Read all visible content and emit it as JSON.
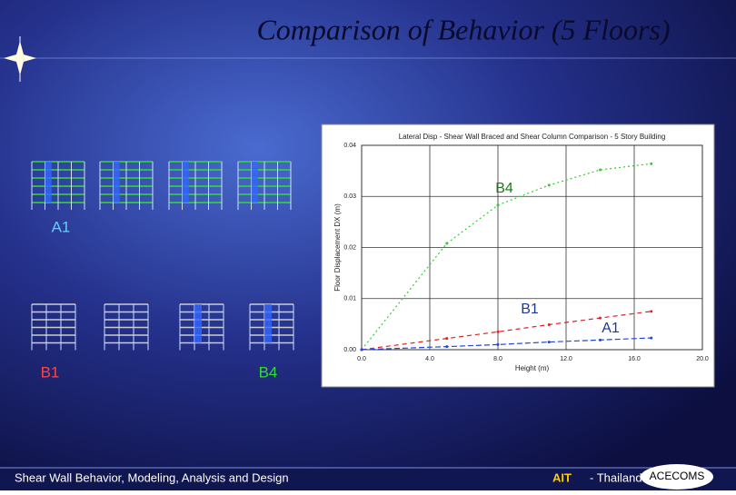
{
  "title": "Comparison of Behavior (5 Floors)",
  "building_labels": [
    "A1",
    "B1",
    "B4"
  ],
  "footer": {
    "left": "Shear Wall Behavior, Modeling, Analysis and Design",
    "org": "AIT",
    "place": "- Thailand",
    "logo": "ACECOMS"
  },
  "chart_data": {
    "type": "line",
    "title": "Lateral Disp - Shear Wall Braced and Shear Column Comparison - 5 Story Building",
    "x_label": "Height (m)",
    "y_label": "Floor Displacement DX (m)",
    "x": [
      0,
      5,
      8,
      11,
      14,
      17
    ],
    "series": [
      {
        "name": "B4",
        "color": "#33cc33",
        "values": [
          0,
          0.0208,
          0.0283,
          0.0322,
          0.0352,
          0.0364
        ]
      },
      {
        "name": "B1",
        "color": "#dd2222",
        "values": [
          0,
          0.0022,
          0.0035,
          0.0049,
          0.0062,
          0.0075
        ]
      },
      {
        "name": "A1",
        "color": "#2244dd",
        "values": [
          0,
          0.0006,
          0.001,
          0.0015,
          0.0019,
          0.0023
        ]
      }
    ],
    "xlim": [
      0,
      20
    ],
    "xticks": [
      {
        "value": 0,
        "label": "0.0"
      },
      {
        "value": 4,
        "label": "4.0"
      },
      {
        "value": 8,
        "label": "8.0"
      },
      {
        "value": 12,
        "label": "12.0"
      },
      {
        "value": 16,
        "label": "16.0"
      },
      {
        "value": 20,
        "label": "20.0"
      }
    ],
    "ylim": [
      0,
      0.04
    ],
    "yticks": [
      {
        "value": 0,
        "label": "0.00"
      },
      {
        "value": 0.01,
        "label": "0.01"
      },
      {
        "value": 0.02,
        "label": "0.02"
      },
      {
        "value": 0.03,
        "label": "0.03"
      },
      {
        "value": 0.04,
        "label": "0.04"
      }
    ],
    "grid": true
  }
}
